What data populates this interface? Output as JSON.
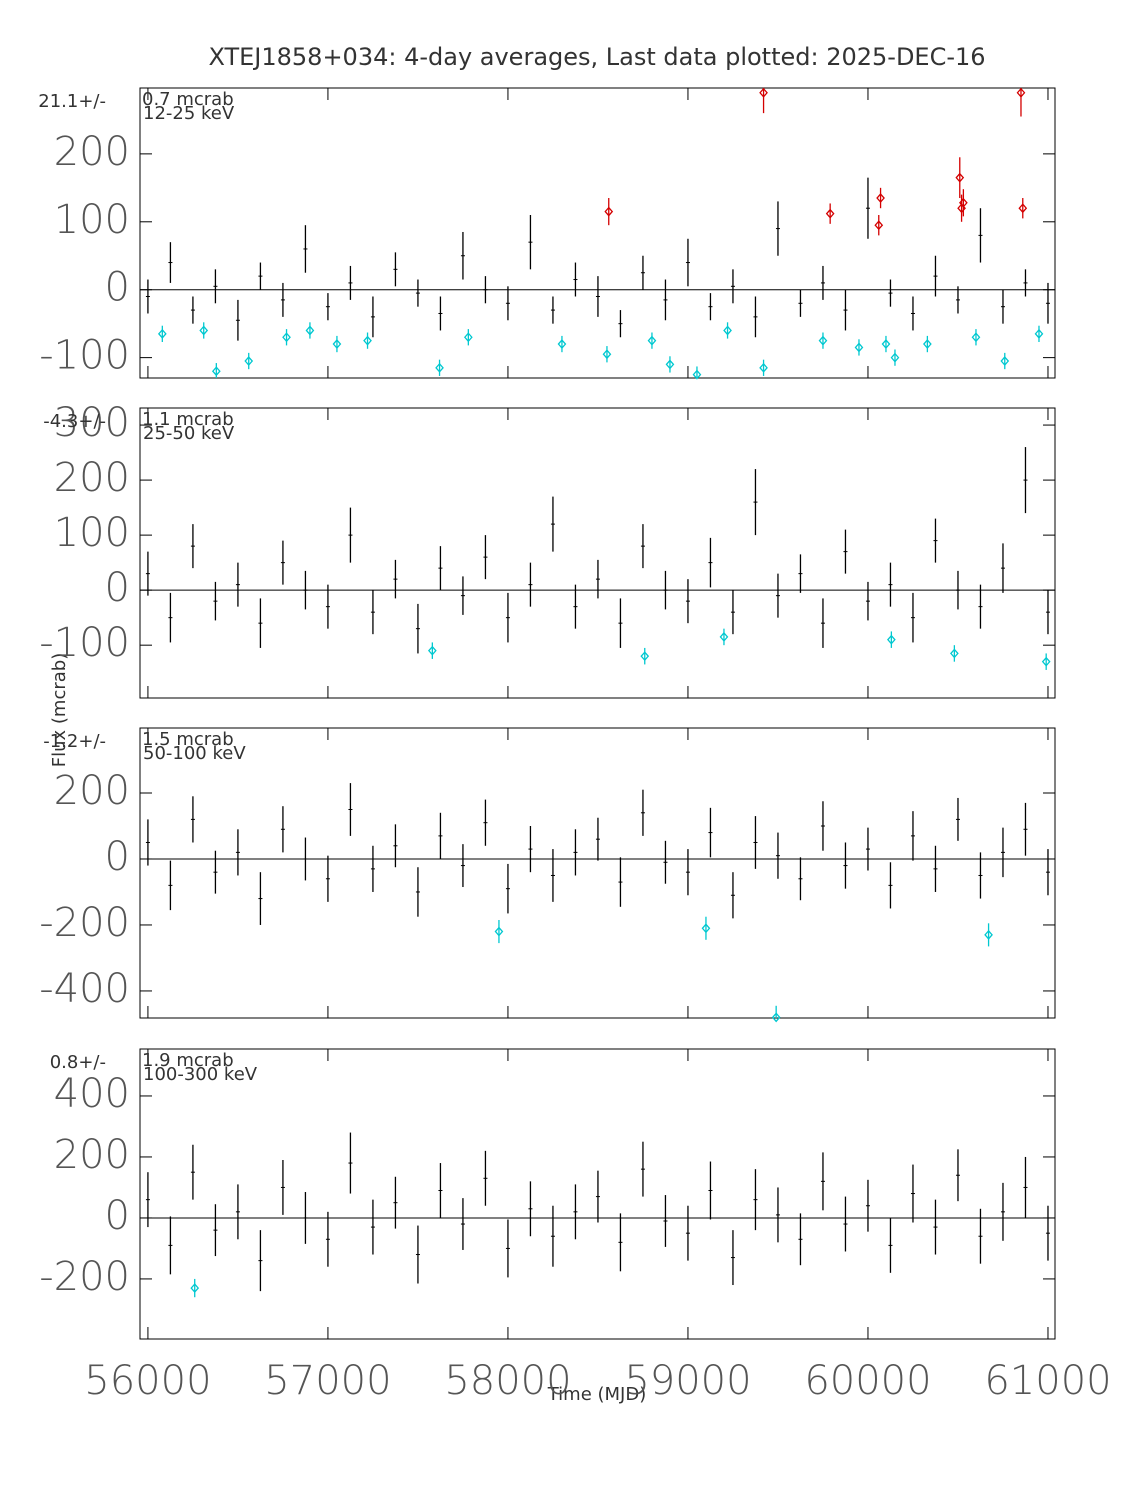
{
  "chart_data": [
    {
      "type": "errorbar",
      "title": "XTEJ1858+034:  4-day averages,  Last data plotted: 2025-DEC-16",
      "note_left": "21.1+/-",
      "note_right": "0.7 mcrab",
      "band": "12-25 keV",
      "xlim": [
        55956,
        61039
      ],
      "xticks": [
        56000,
        57000,
        58000,
        59000,
        60000,
        61000
      ],
      "ylim": [
        -130,
        297
      ],
      "yticks": [
        -100,
        0,
        100,
        200
      ],
      "series": [
        {
          "color": "#000000",
          "marker": "none",
          "x": [
            56000,
            56125,
            56250,
            56375,
            56500,
            56625,
            56750,
            56875,
            57000,
            57125,
            57250,
            57375,
            57500,
            57625,
            57750,
            57875,
            58000,
            58125,
            58250,
            58375,
            58500,
            58625,
            58750,
            58875,
            59000,
            59125,
            59250,
            59375,
            59500,
            59625,
            59750,
            59875,
            60000,
            60125,
            60250,
            60375,
            60500,
            60625,
            60750,
            60875,
            61000
          ],
          "values": [
            -10,
            40,
            -30,
            5,
            -45,
            20,
            -15,
            60,
            -25,
            10,
            -40,
            30,
            -5,
            -35,
            50,
            0,
            -20,
            70,
            -30,
            15,
            -10,
            -50,
            25,
            -15,
            40,
            -25,
            5,
            -40,
            90,
            -20,
            10,
            -30,
            120,
            -5,
            -35,
            20,
            -15,
            80,
            -25,
            10,
            -20
          ],
          "errors": [
            25,
            30,
            20,
            25,
            30,
            20,
            25,
            35,
            20,
            25,
            30,
            25,
            20,
            25,
            35,
            20,
            25,
            40,
            20,
            25,
            30,
            20,
            25,
            30,
            35,
            20,
            25,
            30,
            40,
            20,
            25,
            30,
            45,
            20,
            25,
            30,
            20,
            40,
            25,
            20,
            30
          ]
        },
        {
          "color": "#d40000",
          "marker": "diamond",
          "x": [
            58560,
            59420,
            59790,
            60060,
            60070,
            60510,
            60520,
            60530,
            60850,
            60860
          ],
          "values": [
            115,
            290,
            112,
            95,
            135,
            165,
            120,
            128,
            290,
            120
          ],
          "errors": [
            20,
            30,
            15,
            15,
            15,
            30,
            20,
            20,
            35,
            15
          ]
        },
        {
          "color": "#00c8d0",
          "marker": "diamond",
          "x": [
            56080,
            56310,
            56380,
            56560,
            56770,
            56900,
            57050,
            57220,
            57620,
            57780,
            58300,
            58550,
            58800,
            58900,
            59050,
            59220,
            59420,
            59750,
            59950,
            60100,
            60150,
            60330,
            60600,
            60760,
            60950
          ],
          "values": [
            -65,
            -60,
            -120,
            -105,
            -70,
            -60,
            -80,
            -75,
            -115,
            -70,
            -80,
            -95,
            -75,
            -110,
            -125,
            -60,
            -115,
            -75,
            -85,
            -80,
            -100,
            -80,
            -70,
            -105,
            -65
          ],
          "errors": [
            12,
            12,
            12,
            12,
            12,
            12,
            12,
            12,
            12,
            12,
            12,
            12,
            12,
            12,
            12,
            12,
            12,
            12,
            12,
            12,
            12,
            12,
            12,
            12,
            12
          ]
        }
      ]
    },
    {
      "type": "errorbar",
      "note_left": "-4.3+/-",
      "note_right": "1.1 mcrab",
      "band": "25-50 keV",
      "ylabel": "Flux (mcrab)",
      "xlim": [
        55956,
        61039
      ],
      "xticks": [
        56000,
        57000,
        58000,
        59000,
        60000,
        61000
      ],
      "ylim": [
        -196,
        331
      ],
      "yticks": [
        -100,
        0,
        100,
        200,
        300
      ],
      "series": [
        {
          "color": "#000000",
          "marker": "none",
          "x": [
            56000,
            56125,
            56250,
            56375,
            56500,
            56625,
            56750,
            56875,
            57000,
            57125,
            57250,
            57375,
            57500,
            57625,
            57750,
            57875,
            58000,
            58125,
            58250,
            58375,
            58500,
            58625,
            58750,
            58875,
            59000,
            59125,
            59250,
            59375,
            59500,
            59625,
            59750,
            59875,
            60000,
            60125,
            60250,
            60375,
            60500,
            60625,
            60750,
            60875,
            61000
          ],
          "values": [
            30,
            -50,
            80,
            -20,
            10,
            -60,
            50,
            0,
            -30,
            100,
            -40,
            20,
            -70,
            40,
            -10,
            60,
            -50,
            10,
            120,
            -30,
            20,
            -60,
            80,
            0,
            -20,
            50,
            -40,
            160,
            -10,
            30,
            -60,
            70,
            -20,
            10,
            -50,
            90,
            0,
            -30,
            40,
            200,
            -40
          ],
          "errors": [
            40,
            45,
            40,
            35,
            40,
            45,
            40,
            35,
            40,
            50,
            40,
            35,
            45,
            40,
            35,
            40,
            45,
            40,
            50,
            40,
            35,
            45,
            40,
            35,
            40,
            45,
            40,
            60,
            40,
            35,
            45,
            40,
            35,
            40,
            45,
            40,
            35,
            40,
            45,
            60,
            40
          ]
        },
        {
          "color": "#00c8d0",
          "marker": "diamond",
          "x": [
            57580,
            58760,
            59200,
            60130,
            60480,
            60990
          ],
          "values": [
            -110,
            -120,
            -85,
            -90,
            -115,
            -130
          ],
          "errors": [
            15,
            15,
            15,
            15,
            15,
            15
          ]
        }
      ]
    },
    {
      "type": "errorbar",
      "note_left": "-1.2+/-",
      "note_right": "1.5 mcrab",
      "band": "50-100 keV",
      "xlim": [
        55956,
        61039
      ],
      "xticks": [
        56000,
        57000,
        58000,
        59000,
        60000,
        61000
      ],
      "ylim": [
        -482,
        397
      ],
      "yticks": [
        -400,
        -200,
        0,
        200
      ],
      "series": [
        {
          "color": "#000000",
          "marker": "none",
          "x": [
            56000,
            56125,
            56250,
            56375,
            56500,
            56625,
            56750,
            56875,
            57000,
            57125,
            57250,
            57375,
            57500,
            57625,
            57750,
            57875,
            58000,
            58125,
            58250,
            58375,
            58500,
            58625,
            58750,
            58875,
            59000,
            59125,
            59250,
            59375,
            59500,
            59625,
            59750,
            59875,
            60000,
            60125,
            60250,
            60375,
            60500,
            60625,
            60750,
            60875,
            61000
          ],
          "values": [
            50,
            -80,
            120,
            -40,
            20,
            -120,
            90,
            0,
            -60,
            150,
            -30,
            40,
            -100,
            70,
            -20,
            110,
            -90,
            30,
            -50,
            20,
            60,
            -70,
            140,
            -10,
            -40,
            80,
            -110,
            50,
            10,
            -60,
            100,
            -20,
            30,
            -80,
            70,
            -30,
            120,
            -50,
            20,
            90,
            -40
          ],
          "errors": [
            70,
            75,
            70,
            65,
            70,
            80,
            70,
            65,
            70,
            80,
            70,
            65,
            75,
            70,
            65,
            70,
            75,
            70,
            80,
            70,
            65,
            75,
            70,
            65,
            70,
            75,
            70,
            80,
            70,
            65,
            75,
            70,
            65,
            70,
            75,
            70,
            65,
            70,
            75,
            80,
            70
          ]
        },
        {
          "color": "#00c8d0",
          "marker": "diamond",
          "x": [
            57950,
            59100,
            59490,
            60670
          ],
          "values": [
            -220,
            -210,
            -480,
            -230
          ],
          "errors": [
            35,
            35,
            35,
            35
          ]
        }
      ]
    },
    {
      "type": "errorbar",
      "note_left": "0.8+/-",
      "note_right": "1.9 mcrab",
      "band": "100-300 keV",
      "xlabel": "Time (MJD)",
      "xlim": [
        55956,
        61039
      ],
      "xticks": [
        56000,
        57000,
        58000,
        59000,
        60000,
        61000
      ],
      "ylim": [
        -397,
        554
      ],
      "yticks": [
        -200,
        0,
        200,
        400
      ],
      "series": [
        {
          "color": "#000000",
          "marker": "none",
          "x": [
            56000,
            56125,
            56250,
            56375,
            56500,
            56625,
            56750,
            56875,
            57000,
            57125,
            57250,
            57375,
            57500,
            57625,
            57750,
            57875,
            58000,
            58125,
            58250,
            58375,
            58500,
            58625,
            58750,
            58875,
            59000,
            59125,
            59250,
            59375,
            59500,
            59625,
            59750,
            59875,
            60000,
            60125,
            60250,
            60375,
            60500,
            60625,
            60750,
            60875,
            61000
          ],
          "values": [
            60,
            -90,
            150,
            -40,
            20,
            -140,
            100,
            0,
            -70,
            180,
            -30,
            50,
            -120,
            90,
            -20,
            130,
            -100,
            30,
            -60,
            20,
            70,
            -80,
            160,
            -10,
            -50,
            90,
            -130,
            60,
            10,
            -70,
            120,
            -20,
            40,
            -90,
            80,
            -30,
            140,
            -60,
            20,
            100,
            -50
          ],
          "errors": [
            90,
            95,
            90,
            85,
            90,
            100,
            90,
            85,
            90,
            100,
            90,
            85,
            95,
            90,
            85,
            90,
            95,
            90,
            100,
            90,
            85,
            95,
            90,
            85,
            90,
            95,
            90,
            100,
            90,
            85,
            95,
            90,
            85,
            90,
            95,
            90,
            85,
            90,
            95,
            100,
            90
          ]
        },
        {
          "color": "#00c8d0",
          "marker": "diamond",
          "x": [
            56260
          ],
          "values": [
            -230
          ],
          "errors": [
            30
          ]
        }
      ]
    }
  ]
}
